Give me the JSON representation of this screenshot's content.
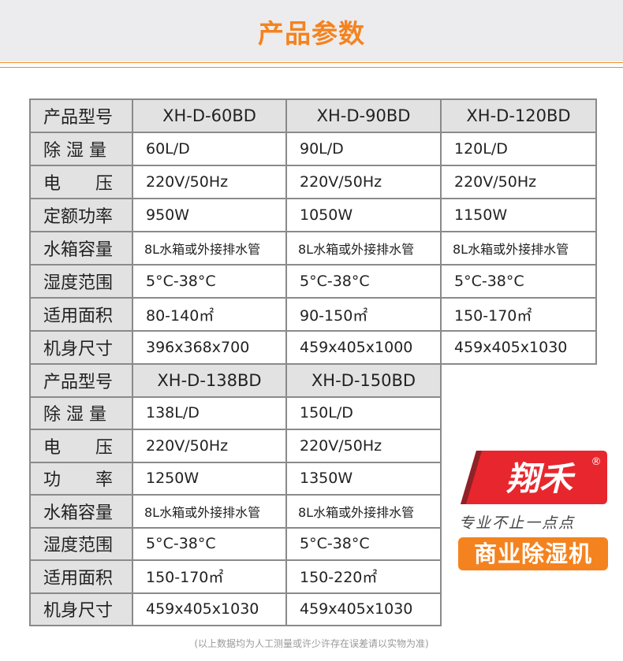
{
  "header": {
    "title": "产品参数"
  },
  "table1": {
    "header": [
      "产品型号",
      "XH-D-60BD",
      "XH-D-90BD",
      "XH-D-120BD"
    ],
    "rows": [
      [
        "除 湿 量",
        "60L/D",
        "90L/D",
        "120L/D"
      ],
      [
        "电　　压",
        "220V/50Hz",
        "220V/50Hz",
        "220V/50Hz"
      ],
      [
        "定额功率",
        "950W",
        "1050W",
        "1150W"
      ],
      [
        "水箱容量",
        "8L水箱或外接排水管",
        "8L水箱或外接排水管",
        "8L水箱或外接排水管"
      ],
      [
        "湿度范围",
        "5°C-38°C",
        "5°C-38°C",
        "5°C-38°C"
      ],
      [
        "适用面积",
        "80-140㎡",
        "90-150㎡",
        "150-170㎡"
      ],
      [
        "机身尺寸",
        "396x368x700",
        "459x405x1000",
        "459x405x1030"
      ]
    ]
  },
  "table2": {
    "header": [
      "产品型号",
      "XH-D-138BD",
      "XH-D-150BD"
    ],
    "rows": [
      [
        "除 湿 量",
        "138L/D",
        "150L/D"
      ],
      [
        "电　　压",
        "220V/50Hz",
        "220V/50Hz"
      ],
      [
        "功　　率",
        "1250W",
        "1350W"
      ],
      [
        "水箱容量",
        "8L水箱或外接排水管",
        "8L水箱或外接排水管"
      ],
      [
        "湿度范围",
        "5°C-38°C",
        "5°C-38°C"
      ],
      [
        "适用面积",
        "150-170㎡",
        "150-220㎡"
      ],
      [
        "机身尺寸",
        "459x405x1030",
        "459x405x1030"
      ]
    ]
  },
  "brand": {
    "logo_text": "翔禾",
    "registered": "®",
    "slogan": "专业不止一点点",
    "badge": "商业除湿机",
    "red": "#e8262d",
    "orange": "#f4831f"
  },
  "footnote": "(以上数据均为人工测量或许少许存在误差请以实物为准)"
}
